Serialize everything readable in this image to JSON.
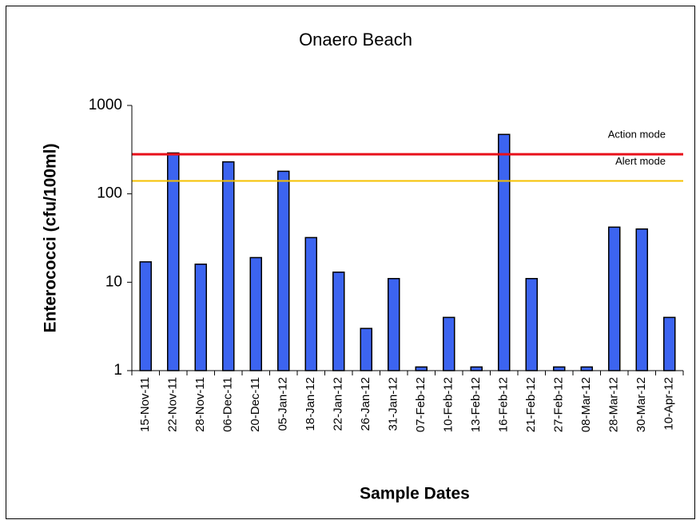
{
  "chart_data": {
    "type": "bar",
    "title": "Onaero Beach",
    "x_label": "Sample Dates",
    "y_label": "Enterococci (cfu/100ml)",
    "categories": [
      "15-Nov-11",
      "22-Nov-11",
      "28-Nov-11",
      "06-Dec-11",
      "20-Dec-11",
      "05-Jan-12",
      "18-Jan-12",
      "22-Jan-12",
      "26-Jan-12",
      "31-Jan-12",
      "07-Feb-12",
      "10-Feb-12",
      "13-Feb-12",
      "16-Feb-12",
      "21-Feb-12",
      "27-Feb-12",
      "08-Mar-12",
      "28-Mar-12",
      "30-Mar-12",
      "10-Apr-12"
    ],
    "values": [
      17,
      290,
      16,
      230,
      19,
      180,
      32,
      13,
      3,
      11,
      1.1,
      4,
      1.1,
      470,
      11,
      1.1,
      1.1,
      42,
      40,
      4
    ],
    "color": "#3c64f0",
    "yscale": "log",
    "ylim": [
      1,
      1000
    ],
    "yticks": [
      1,
      10,
      100,
      1000
    ],
    "grid": false,
    "reference_lines": [
      {
        "name": "Action mode",
        "value": 280,
        "color": "#e8101a"
      },
      {
        "name": "Alert mode",
        "value": 140,
        "color": "#f5c000"
      }
    ]
  }
}
